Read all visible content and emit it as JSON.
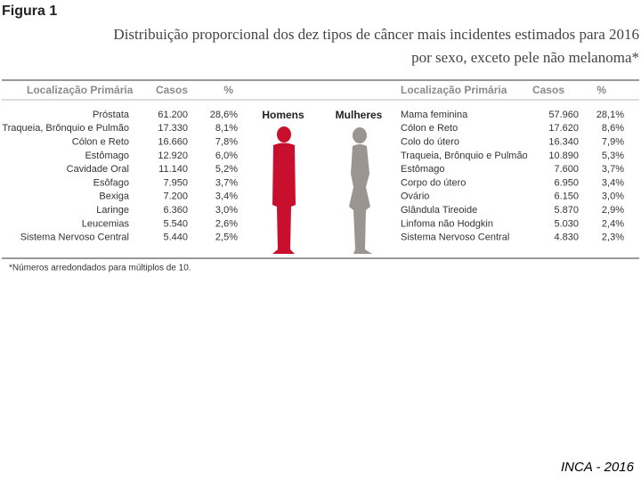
{
  "figure_label": "Figura 1",
  "title": [
    "Distribuição proporcional dos dez tipos de câncer mais incidentes estimados para 2016",
    "por sexo, exceto pele não melanoma*"
  ],
  "left_table": {
    "headers": [
      "Localização Primária",
      "Casos",
      "%"
    ],
    "rows": [
      [
        "Próstata",
        "61.200",
        "28,6%"
      ],
      [
        "Traqueia, Brônquio e Pulmão",
        "17.330",
        "8,1%"
      ],
      [
        "Cólon e Reto",
        "16.660",
        "7,8%"
      ],
      [
        "Estômago",
        "12.920",
        "6,0%"
      ],
      [
        "Cavidade Oral",
        "11.140",
        "5,2%"
      ],
      [
        "Esôfago",
        "7.950",
        "3,7%"
      ],
      [
        "Bexiga",
        "7.200",
        "3,4%"
      ],
      [
        "Laringe",
        "6.360",
        "3,0%"
      ],
      [
        "Leucemias",
        "5.540",
        "2,6%"
      ],
      [
        "Sistema Nervoso Central",
        "5.440",
        "2,5%"
      ]
    ]
  },
  "right_table": {
    "headers": [
      "Localização Primária",
      "Casos",
      "%"
    ],
    "rows": [
      [
        "Mama feminina",
        "57.960",
        "28,1%"
      ],
      [
        "Cólon e Reto",
        "17.620",
        "8,6%"
      ],
      [
        "Colo do útero",
        "16.340",
        "7,9%"
      ],
      [
        "Traqueia, Brônquio e Pulmão",
        "10.890",
        "5,3%"
      ],
      [
        "Estômago",
        "7.600",
        "3,7%"
      ],
      [
        "Corpo do útero",
        "6.950",
        "3,4%"
      ],
      [
        "Ovário",
        "6.150",
        "3,0%"
      ],
      [
        "Glândula Tireoide",
        "5.870",
        "2,9%"
      ],
      [
        "Linfoma não Hodgkin",
        "5.030",
        "2,4%"
      ],
      [
        "Sistema Nervoso Central",
        "4.830",
        "2,3%"
      ]
    ]
  },
  "men_label": "Homens",
  "women_label": "Mulheres",
  "footnote": "*Números arredondados para múltiplos de 10.",
  "source": "INCA - 2016"
}
